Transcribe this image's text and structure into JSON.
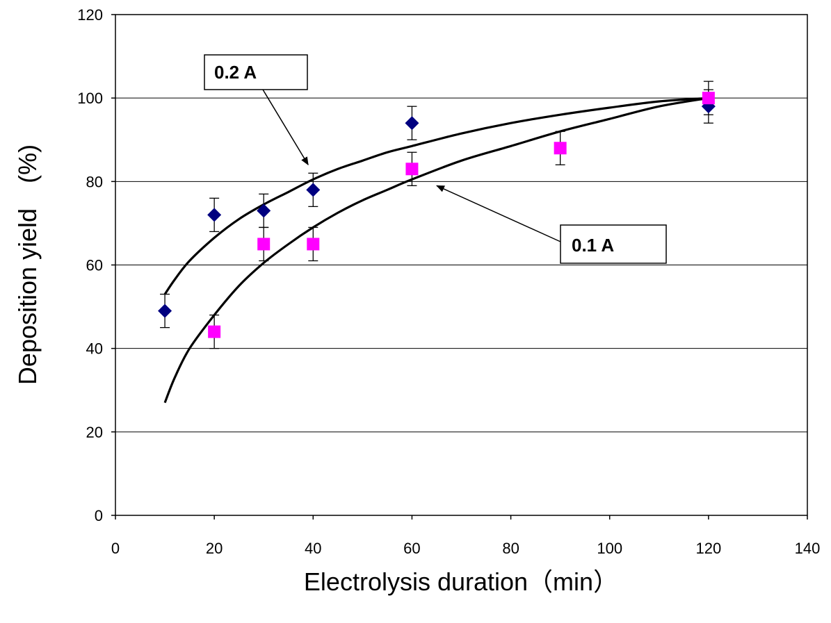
{
  "chart_data": {
    "type": "scatter",
    "title": "",
    "xlabel": "Electrolysis duration（min）",
    "ylabel": "Deposition yield　(%)",
    "xlim": [
      0,
      140
    ],
    "ylim": [
      0,
      120
    ],
    "x_ticks": [
      0,
      20,
      40,
      60,
      80,
      100,
      120,
      140
    ],
    "y_ticks": [
      0,
      20,
      40,
      60,
      80,
      100,
      120
    ],
    "grid": "horizontal",
    "series": [
      {
        "marker": "diamond",
        "color": "#000080",
        "points": [
          {
            "x": 10,
            "y": 49,
            "err": 4
          },
          {
            "x": 20,
            "y": 72,
            "err": 4
          },
          {
            "x": 30,
            "y": 73,
            "err": 4
          },
          {
            "x": 40,
            "y": 78,
            "err": 4
          },
          {
            "x": 60,
            "y": 94,
            "err": 4
          },
          {
            "x": 120,
            "y": 98,
            "err": 4
          }
        ]
      },
      {
        "marker": "square",
        "color": "#ff00ff",
        "points": [
          {
            "x": 20,
            "y": 44,
            "err": 4
          },
          {
            "x": 30,
            "y": 65,
            "err": 4
          },
          {
            "x": 40,
            "y": 65,
            "err": 4
          },
          {
            "x": 60,
            "y": 83,
            "err": 4
          },
          {
            "x": 90,
            "y": 88,
            "err": 4
          },
          {
            "x": 120,
            "y": 100,
            "err": 4
          }
        ]
      }
    ],
    "curves": [
      {
        "x": [
          10,
          12,
          15,
          20,
          25,
          30,
          35,
          40,
          45,
          50,
          55,
          60,
          70,
          80,
          90,
          100,
          110,
          120
        ],
        "y": [
          53,
          56.5,
          61,
          66.5,
          71,
          74.5,
          77.5,
          80.5,
          83,
          85,
          87,
          88.5,
          91.5,
          94,
          96,
          97.7,
          99.2,
          100
        ]
      },
      {
        "x": [
          10,
          12,
          15,
          20,
          25,
          30,
          35,
          40,
          45,
          50,
          55,
          60,
          70,
          80,
          90,
          100,
          110,
          120
        ],
        "y": [
          27,
          33,
          40,
          48,
          55,
          60.5,
          65,
          69,
          72.5,
          75.5,
          78,
          80.5,
          85,
          88.5,
          92,
          95,
          98,
          100
        ]
      }
    ],
    "annotations": [
      {
        "text": "0.2 A",
        "points_to": {
          "x": 39,
          "y": 84
        }
      },
      {
        "text": "0.1 A",
        "points_to": {
          "x": 65,
          "y": 79
        }
      }
    ]
  }
}
